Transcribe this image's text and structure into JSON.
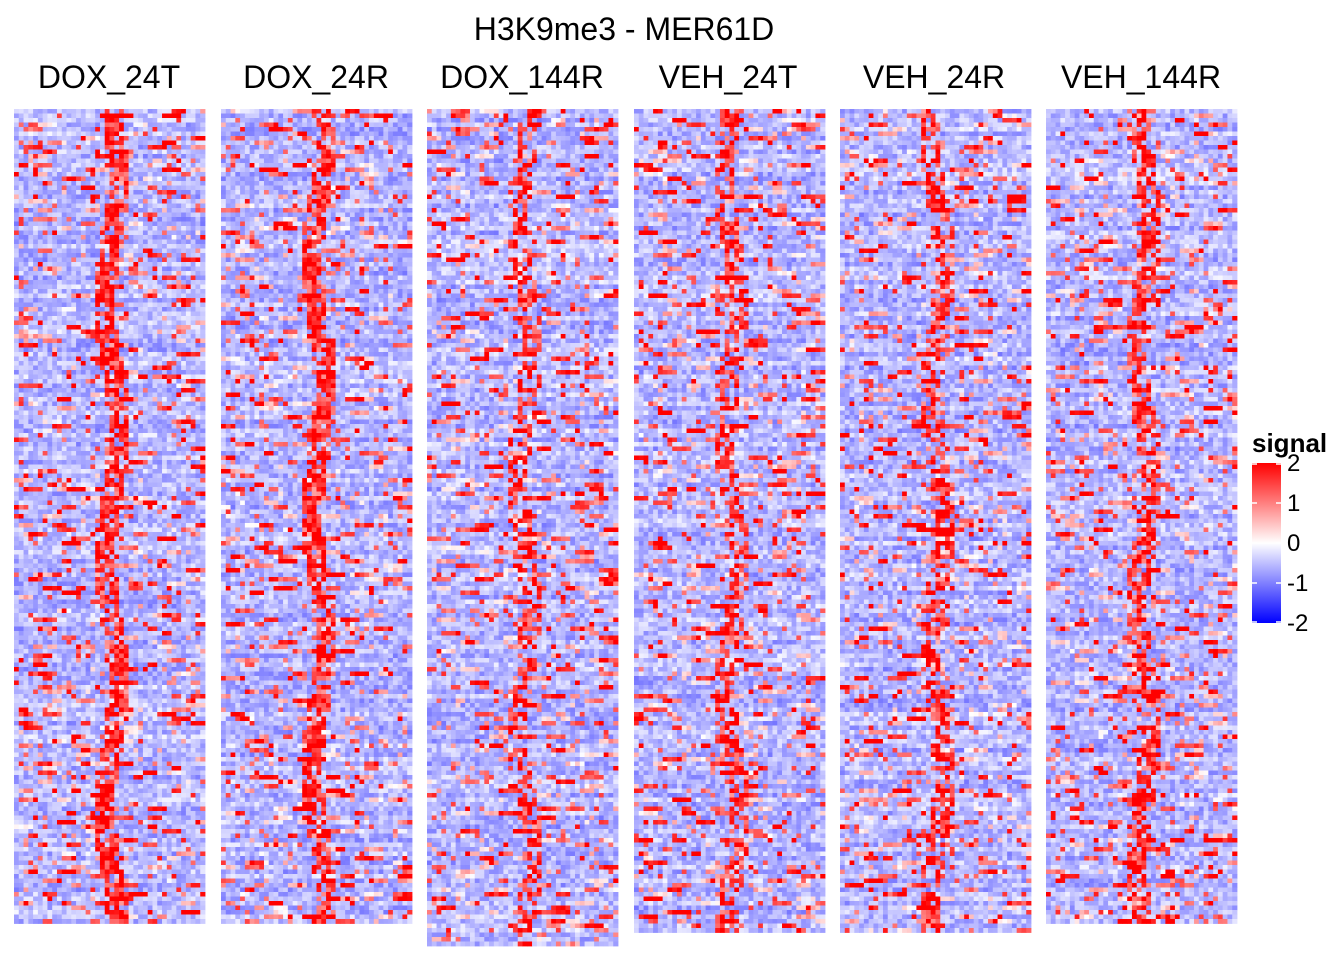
{
  "chart_data": {
    "type": "heatmap",
    "title": "H3K9me3 - MER61D",
    "panels": [
      {
        "name": "DOX_24T",
        "rows": 181,
        "hotspot_strength": 0.75
      },
      {
        "name": "DOX_24R",
        "rows": 181,
        "hotspot_strength": 0.75
      },
      {
        "name": "DOX_144R",
        "rows": 186,
        "hotspot_strength": 0.5
      },
      {
        "name": "VEH_24T",
        "rows": 183,
        "hotspot_strength": 0.55
      },
      {
        "name": "VEH_24R",
        "rows": 183,
        "hotspot_strength": 0.55
      },
      {
        "name": "VEH_144R",
        "rows": 181,
        "hotspot_strength": 0.6
      }
    ],
    "columns_per_panel": 40,
    "value_range": [
      -2,
      2
    ],
    "legend": {
      "title": "signal",
      "ticks": [
        2,
        1,
        0,
        -1,
        -2
      ],
      "placement": "right"
    },
    "colors": {
      "low": "#0000ff",
      "mid": "#ffffff",
      "high": "#ff0000"
    }
  }
}
